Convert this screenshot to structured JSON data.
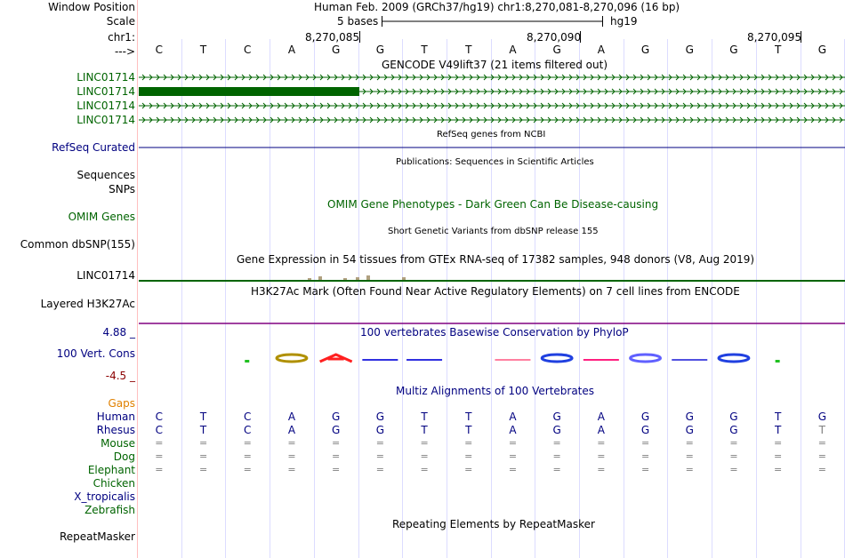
{
  "header": {
    "window_position_label": "Window Position",
    "assembly_position": "Human Feb. 2009 (GRCh37/hg19)   chr1:8,270,081-8,270,096 (16 bp)",
    "scale_label": "Scale",
    "scale_text": "5 bases",
    "assembly_short": "hg19",
    "chrom_label": "chr1:",
    "ruler": [
      "8,270,085",
      "8,270,090",
      "8,270,095"
    ],
    "strand_label": "--->"
  },
  "sequence": [
    "C",
    "T",
    "C",
    "A",
    "G",
    "G",
    "T",
    "T",
    "A",
    "G",
    "A",
    "G",
    "G",
    "G",
    "T",
    "G"
  ],
  "tracks": {
    "gencode_title": "GENCODE V49lift37 (21 items filtered out)",
    "gencode_items": [
      "LINC01714",
      "LINC01714",
      "LINC01714",
      "LINC01714"
    ],
    "refseq_title": "RefSeq genes from NCBI",
    "refseq_label": "RefSeq Curated",
    "publications_title": "Publications: Sequences in Scientific Articles",
    "sequences_label": "Sequences",
    "snps_label": "SNPs",
    "omim_title": "OMIM Gene Phenotypes - Dark Green Can Be Disease-causing",
    "omim_label": "OMIM Genes",
    "dbsnp_title": "Short Genetic Variants from dbSNP release 155",
    "dbsnp_label": "Common dbSNP(155)",
    "gtex_title": "Gene Expression in 54 tissues from GTEx RNA-seq of 17382 samples, 948 donors (V8, Aug 2019)",
    "gtex_label": "LINC01714",
    "h3k27ac_title": "H3K27Ac Mark (Often Found Near Active Regulatory Elements) on 7 cell lines from ENCODE",
    "h3k27ac_label": "Layered H3K27Ac",
    "phylop_max": "4.88 _",
    "phylop_title": "100 vertebrates Basewise Conservation by PhyloP",
    "phylop_label": "100 Vert. Cons",
    "phylop_min": "-4.5 _",
    "multiz_title": "Multiz Alignments of 100 Vertebrates",
    "gaps_label": "Gaps",
    "species": [
      "Human",
      "Rhesus",
      "Mouse",
      "Dog",
      "Elephant",
      "Chicken",
      "X_tropicalis",
      "Zebrafish"
    ],
    "rhesus_seq": [
      "C",
      "T",
      "C",
      "A",
      "G",
      "G",
      "T",
      "T",
      "A",
      "G",
      "A",
      "G",
      "G",
      "G",
      "T",
      "T"
    ],
    "equal_symbol": "=",
    "repeat_title": "Repeating Elements by RepeatMasker",
    "repeat_label": "RepeatMasker"
  },
  "colors": {
    "gene": "#006400",
    "navy": "#000080",
    "gaps": "#e08000",
    "phylop_min": "#8b0000",
    "h3k27ac_line": "#800080",
    "grid_line": "#dcdcff",
    "sep_line": "#ffbfbf"
  }
}
